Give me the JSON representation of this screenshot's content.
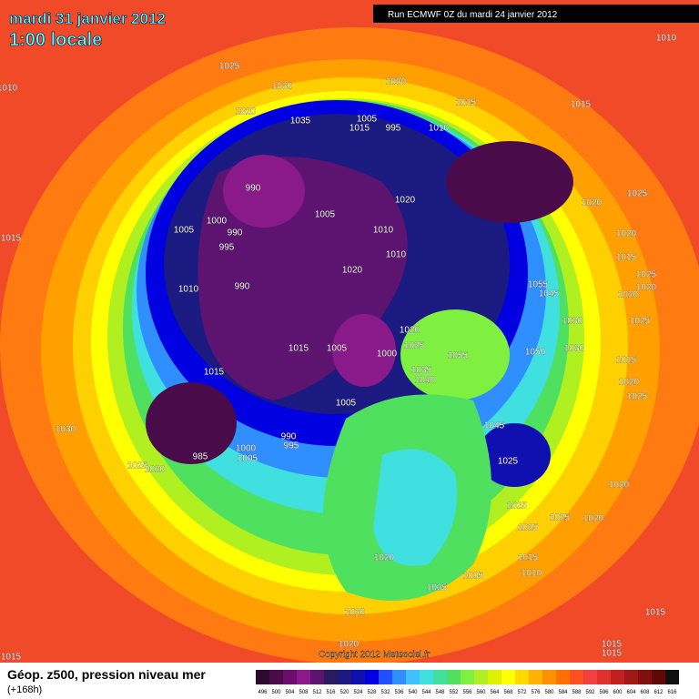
{
  "header": {
    "date": "mardi 31 janvier 2012",
    "time": "1:00 locale",
    "run": "Run ECMWF 0Z du mardi 24 janvier 2012"
  },
  "footer": {
    "title": "Géop. z500, pression niveau mer",
    "lead": "(+168h)",
    "copyright": "Copyright 2012 Meteociel.fr"
  },
  "isobar_labels": [
    1025,
    1030,
    1020,
    1035,
    1000,
    1015,
    1015,
    1010,
    995,
    1005,
    1015,
    990,
    1000,
    1005,
    995,
    990,
    1005,
    1020,
    1010,
    1010,
    1020,
    990,
    1010,
    1015,
    1020,
    1025,
    1020,
    1015,
    1025,
    1020,
    1020,
    1055,
    1045,
    1030,
    1025,
    1050,
    1030,
    1020,
    1025,
    1015,
    1020,
    1025,
    1055,
    1015,
    1005,
    1000,
    1040,
    1035,
    1015,
    1005,
    1030,
    1025,
    1020,
    985,
    1000,
    1005,
    995,
    990,
    1045,
    1025,
    1020,
    1025,
    1025,
    1025,
    1020,
    1015,
    1010,
    1005,
    1005,
    1020,
    1020,
    1020,
    1015,
    1015,
    1015,
    1015,
    1010,
    1010
  ],
  "colorbar": [
    {
      "value": 496,
      "color": "#2d0a2d"
    },
    {
      "value": 500,
      "color": "#4a0b4a"
    },
    {
      "value": 504,
      "color": "#6b0e6b"
    },
    {
      "value": 508,
      "color": "#8a1a8a"
    },
    {
      "value": 512,
      "color": "#5c1470"
    },
    {
      "value": 516,
      "color": "#2b1a5e"
    },
    {
      "value": 520,
      "color": "#1a1a80"
    },
    {
      "value": 524,
      "color": "#1010b0"
    },
    {
      "value": 528,
      "color": "#0000e0"
    },
    {
      "value": 532,
      "color": "#1f4fff"
    },
    {
      "value": 536,
      "color": "#2f8fff"
    },
    {
      "value": 540,
      "color": "#40c0ff"
    },
    {
      "value": 544,
      "color": "#40e0e0"
    },
    {
      "value": 548,
      "color": "#40e0a0"
    },
    {
      "value": 552,
      "color": "#50e060"
    },
    {
      "value": 556,
      "color": "#80f040"
    },
    {
      "value": 560,
      "color": "#b0f020"
    },
    {
      "value": 564,
      "color": "#e0f000"
    },
    {
      "value": 568,
      "color": "#ffff00"
    },
    {
      "value": 572,
      "color": "#ffd800"
    },
    {
      "value": 576,
      "color": "#ffb000"
    },
    {
      "value": 580,
      "color": "#ff9000"
    },
    {
      "value": 584,
      "color": "#ff7000"
    },
    {
      "value": 588,
      "color": "#ff5020"
    },
    {
      "value": 592,
      "color": "#f04040"
    },
    {
      "value": 596,
      "color": "#e03030"
    },
    {
      "value": 600,
      "color": "#c02020"
    },
    {
      "value": 604,
      "color": "#a01818"
    },
    {
      "value": 608,
      "color": "#801010"
    },
    {
      "value": 612,
      "color": "#600808"
    },
    {
      "value": 616,
      "color": "#101010"
    }
  ]
}
